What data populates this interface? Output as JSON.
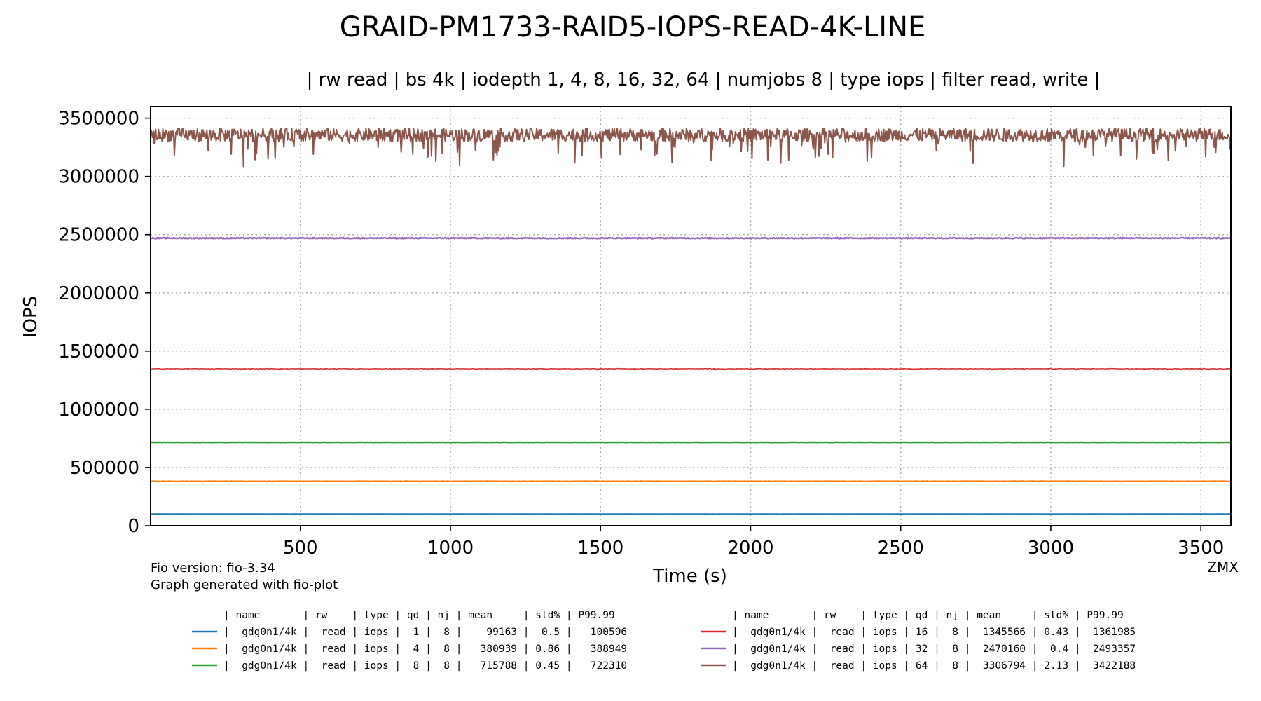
{
  "chart_data": {
    "type": "line",
    "title": "GRAID-PM1733-RAID5-IOPS-READ-4K-LINE",
    "subtitle": "| rw read | bs 4k | iodepth 1, 4, 8, 16, 32, 64 | numjobs 8 | type iops | filter read, write |",
    "xlabel": "Time (s)",
    "ylabel": "IOPS",
    "xlim": [
      1,
      3600
    ],
    "ylim": [
      0,
      3600000
    ],
    "xticks": [
      500,
      1000,
      1500,
      2000,
      2500,
      3000,
      3500
    ],
    "xtick_labels": [
      "500",
      "1000",
      "1500",
      "2000",
      "2500",
      "3000",
      "3500"
    ],
    "yticks": [
      0,
      500000,
      1000000,
      1500000,
      2000000,
      2500000,
      3000000,
      3500000
    ],
    "ytick_labels": [
      "0",
      "500000",
      "1000000",
      "1500000",
      "2000000",
      "2500000",
      "3000000",
      "3500000"
    ],
    "grid": true,
    "footer_line1": "Fio version: fio-3.34",
    "footer_line2": "Graph generated with fio-plot",
    "corner_label": "ZMX",
    "table_header": "| name       | rw    | type | qd | nj | mean     | std% | P99.99",
    "series": [
      {
        "color": "#1f77b4",
        "mean": 99163,
        "std_pct": 0.5,
        "p9999": 100596,
        "row": "|  gdg0n1/4k |  read | iops |  1 |  8 |    99163 |  0.5 |   100596"
      },
      {
        "color": "#ff7f0e",
        "mean": 380939,
        "std_pct": 0.86,
        "p9999": 388949,
        "row": "|  gdg0n1/4k |  read | iops |  4 |  8 |   380939 | 0.86 |   388949"
      },
      {
        "color": "#2ca02c",
        "mean": 715788,
        "std_pct": 0.45,
        "p9999": 722310,
        "row": "|  gdg0n1/4k |  read | iops |  8 |  8 |   715788 | 0.45 |   722310"
      },
      {
        "color": "#d62728",
        "mean": 1345566,
        "std_pct": 0.43,
        "p9999": 1361985,
        "row": "|  gdg0n1/4k |  read | iops | 16 |  8 |  1345566 | 0.43 |  1361985"
      },
      {
        "color": "#9467bd",
        "mean": 2470160,
        "std_pct": 0.4,
        "p9999": 2493357,
        "row": "|  gdg0n1/4k |  read | iops | 32 |  8 |  2470160 |  0.4 |  2493357"
      },
      {
        "color": "#8c564b",
        "mean": 3306794,
        "std_pct": 2.13,
        "p9999": 3422188,
        "row": "|  gdg0n1/4k |  read | iops | 64 |  8 |  3306794 | 2.13 |  3422188"
      }
    ]
  }
}
